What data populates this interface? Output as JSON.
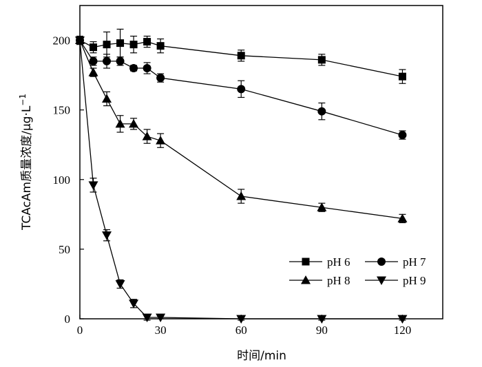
{
  "chart_data": {
    "type": "line",
    "title": "",
    "xlabel": "时间/min",
    "ylabel_main": "TCAcAm质量浓度/μg·L",
    "ylabel_sup": "−1",
    "xlim": [
      0,
      135
    ],
    "ylim": [
      0,
      225
    ],
    "xticks": [
      "0",
      "30",
      "60",
      "90",
      "120"
    ],
    "yticks": [
      "0",
      "50",
      "100",
      "150",
      "200"
    ],
    "grid": false,
    "legend_position": "bottom-right",
    "series": [
      {
        "name": "pH 6",
        "marker": "square",
        "x": [
          0,
          5,
          10,
          15,
          20,
          25,
          30,
          60,
          90,
          120
        ],
        "y": [
          200,
          195,
          197,
          198,
          197,
          199,
          196,
          189,
          186,
          174
        ],
        "err": [
          3,
          4,
          9,
          10,
          6,
          4,
          5,
          4,
          4,
          5
        ]
      },
      {
        "name": "pH 7",
        "marker": "circle",
        "x": [
          0,
          5,
          10,
          15,
          20,
          25,
          30,
          60,
          90,
          120
        ],
        "y": [
          200,
          185,
          185,
          185,
          180,
          180,
          173,
          165,
          149,
          132
        ],
        "err": [
          2,
          3,
          5,
          3,
          2,
          4,
          3,
          6,
          6,
          3
        ]
      },
      {
        "name": "pH 8",
        "marker": "triangle-up",
        "x": [
          0,
          5,
          10,
          15,
          20,
          25,
          30,
          60,
          90,
          120
        ],
        "y": [
          200,
          177,
          158,
          140,
          140,
          131,
          128,
          88,
          80,
          72
        ],
        "err": [
          2,
          3,
          5,
          6,
          4,
          5,
          5,
          5,
          3,
          3
        ]
      },
      {
        "name": "pH 9",
        "marker": "triangle-down",
        "x": [
          0,
          5,
          10,
          15,
          20,
          25,
          30,
          60,
          90,
          120
        ],
        "y": [
          200,
          96,
          60,
          25,
          11,
          1,
          1,
          0,
          0,
          0
        ],
        "err": [
          2,
          5,
          4,
          3,
          3,
          2,
          1,
          1,
          1,
          1
        ]
      }
    ]
  }
}
